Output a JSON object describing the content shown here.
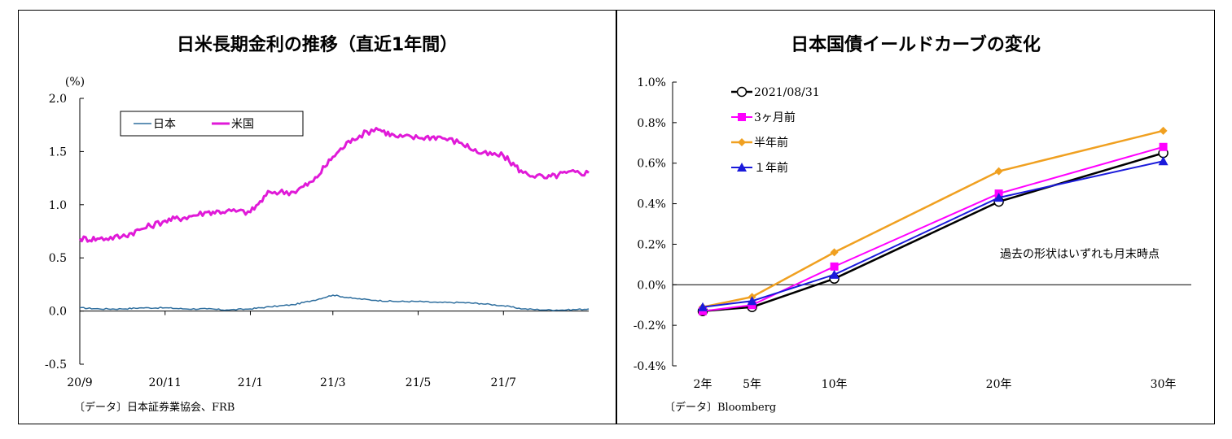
{
  "colors": {
    "japan": "#2e6e9e",
    "us": "#e01ad8",
    "latest": "#000000",
    "m3": "#ff00ff",
    "m6": "#f0a020",
    "y1": "#1a1adb",
    "negative_tick": "#ff0000"
  },
  "chart_data": [
    {
      "type": "line",
      "title": "日米長期金利の推移（直近1年間）",
      "unit_label": "(%)",
      "ylim": [
        -0.5,
        2.0
      ],
      "y_ticks": [
        "2.0",
        "1.5",
        "1.0",
        "0.5",
        "0.0",
        "-0.5"
      ],
      "x_ticks": [
        "20/9",
        "20/11",
        "21/1",
        "21/3",
        "21/5",
        "21/7"
      ],
      "legend": [
        "日本",
        "米国"
      ],
      "legend_position": "top-left",
      "source": "〔データ〕日本証券業協会、FRB",
      "series": [
        {
          "name": "日本",
          "x": [
            "2020-09-01",
            "2020-09-15",
            "2020-10-01",
            "2020-10-15",
            "2020-11-01",
            "2020-11-15",
            "2020-12-01",
            "2020-12-15",
            "2021-01-01",
            "2021-01-15",
            "2021-02-01",
            "2021-02-15",
            "2021-03-01",
            "2021-03-15",
            "2021-04-01",
            "2021-04-15",
            "2021-05-01",
            "2021-05-15",
            "2021-06-01",
            "2021-06-15",
            "2021-07-01",
            "2021-07-15",
            "2021-08-01",
            "2021-08-15",
            "2021-08-31"
          ],
          "values": [
            0.03,
            0.02,
            0.02,
            0.03,
            0.03,
            0.02,
            0.02,
            0.01,
            0.02,
            0.04,
            0.06,
            0.1,
            0.15,
            0.12,
            0.1,
            0.09,
            0.09,
            0.08,
            0.08,
            0.07,
            0.05,
            0.02,
            0.01,
            0.01,
            0.02
          ]
        },
        {
          "name": "米国",
          "x": [
            "2020-09-01",
            "2020-09-15",
            "2020-10-01",
            "2020-10-15",
            "2020-11-01",
            "2020-11-15",
            "2020-12-01",
            "2020-12-15",
            "2021-01-01",
            "2021-01-15",
            "2021-02-01",
            "2021-02-15",
            "2021-03-01",
            "2021-03-15",
            "2021-04-01",
            "2021-04-15",
            "2021-05-01",
            "2021-05-15",
            "2021-06-01",
            "2021-06-15",
            "2021-07-01",
            "2021-07-15",
            "2021-08-01",
            "2021-08-15",
            "2021-08-31"
          ],
          "values": [
            0.68,
            0.68,
            0.7,
            0.77,
            0.85,
            0.88,
            0.93,
            0.94,
            0.93,
            1.12,
            1.12,
            1.22,
            1.45,
            1.62,
            1.72,
            1.64,
            1.63,
            1.64,
            1.58,
            1.48,
            1.46,
            1.3,
            1.25,
            1.3,
            1.3
          ]
        }
      ]
    },
    {
      "type": "line",
      "title": "日本国債イールドカーブの変化",
      "categories": [
        "2年",
        "5年",
        "10年",
        "20年",
        "30年"
      ],
      "x": [
        2,
        5,
        10,
        20,
        30
      ],
      "ylim": [
        -0.4,
        1.0
      ],
      "y_ticks": [
        "1.0%",
        "0.8%",
        "0.6%",
        "0.4%",
        "0.2%",
        "0.0%",
        "-0.2%",
        "-0.4%"
      ],
      "annotation": "過去の形状はいずれも月末時点",
      "legend_position": "top-left",
      "source": "〔データ〕Bloomberg",
      "series": [
        {
          "name": "2021/08/31",
          "values": [
            -0.13,
            -0.11,
            0.03,
            0.41,
            0.65
          ]
        },
        {
          "name": "3ヶ月前",
          "values": [
            -0.13,
            -0.1,
            0.09,
            0.45,
            0.68
          ]
        },
        {
          "name": "半年前",
          "values": [
            -0.11,
            -0.06,
            0.16,
            0.56,
            0.76
          ]
        },
        {
          "name": "１年前",
          "values": [
            -0.11,
            -0.08,
            0.05,
            0.43,
            0.61
          ]
        }
      ]
    }
  ]
}
